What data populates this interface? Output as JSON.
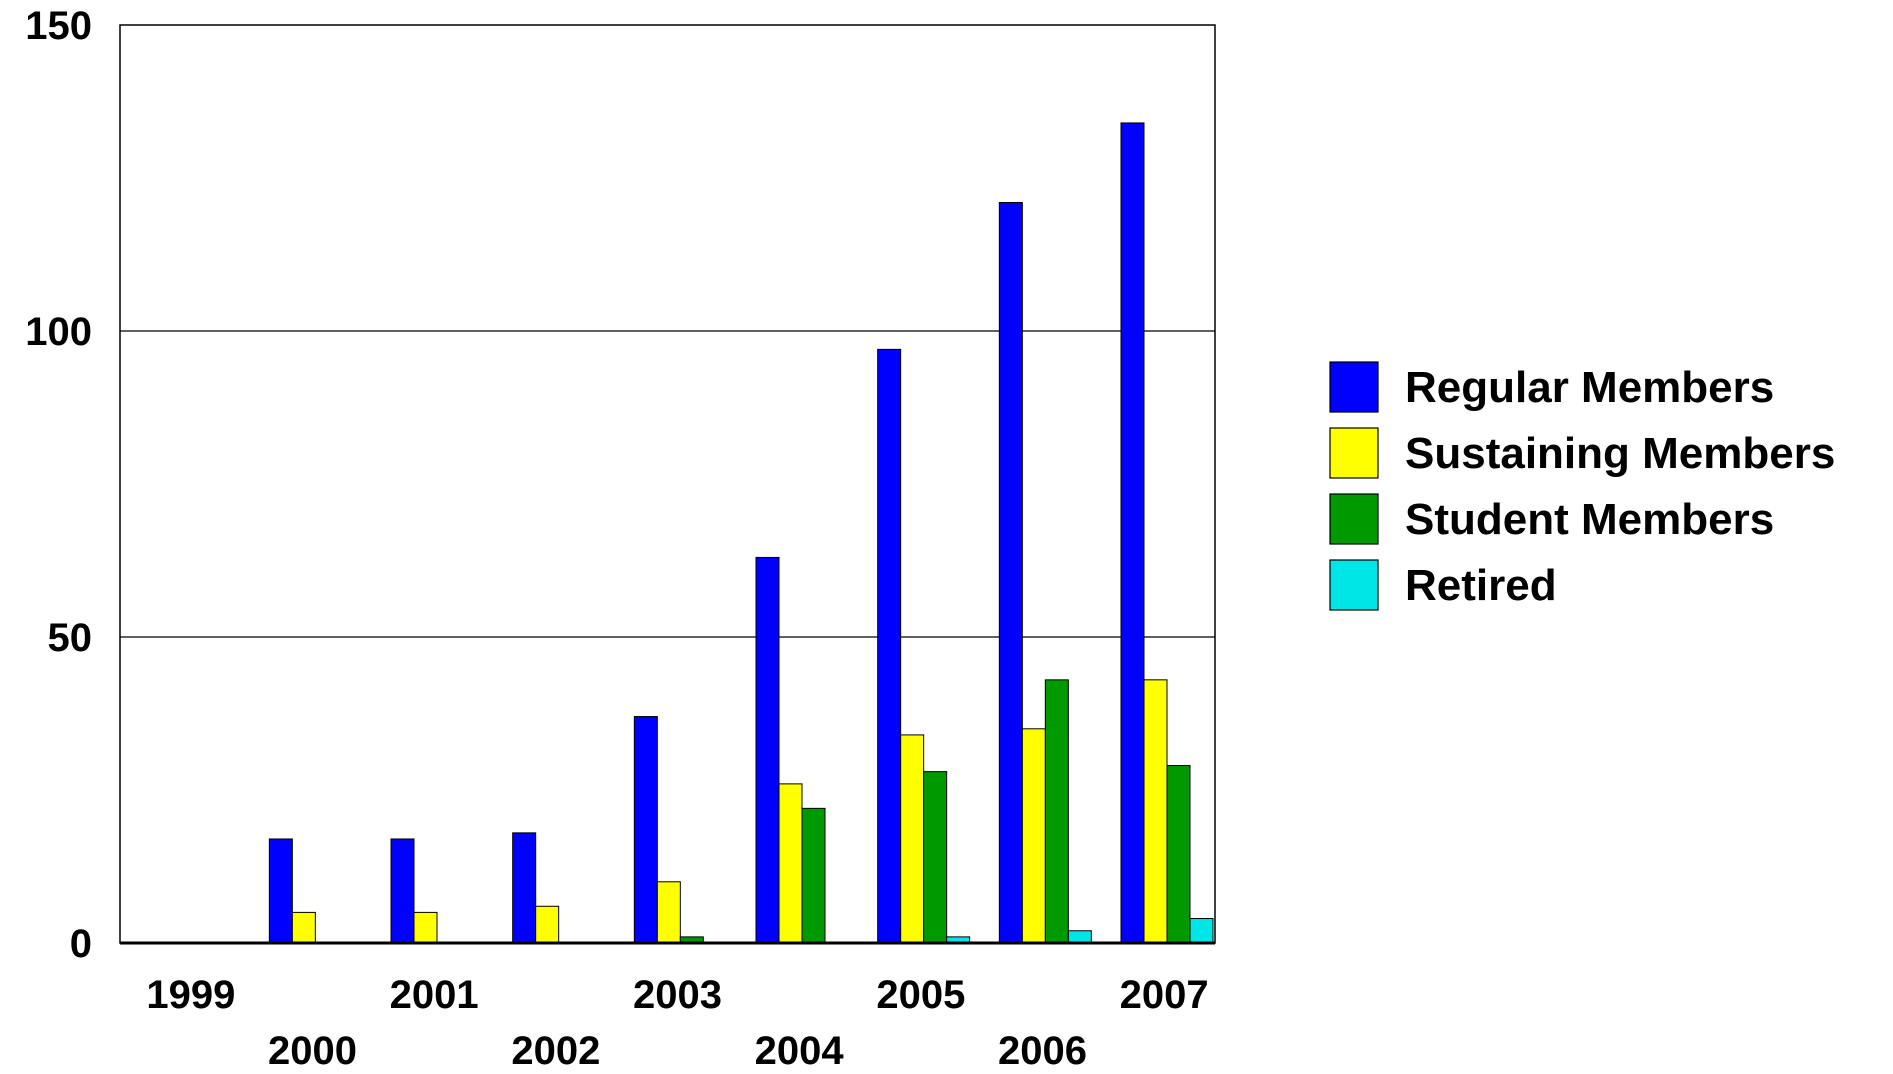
{
  "chart_data": {
    "type": "bar",
    "categories": [
      "1999",
      "2000",
      "2001",
      "2002",
      "2003",
      "2004",
      "2005",
      "2006",
      "2007"
    ],
    "series": [
      {
        "name": "Regular Members",
        "color": "#0000ff",
        "values": [
          0,
          17,
          17,
          18,
          37,
          63,
          97,
          121,
          134
        ]
      },
      {
        "name": "Sustaining Members",
        "color": "#ffff00",
        "values": [
          0,
          5,
          5,
          6,
          10,
          26,
          34,
          35,
          43
        ]
      },
      {
        "name": "Student Members",
        "color": "#009900",
        "values": [
          0,
          0,
          0,
          0,
          1,
          22,
          28,
          43,
          29
        ]
      },
      {
        "name": "Retired",
        "color": "#00e5e5",
        "values": [
          0,
          0,
          0,
          0,
          0,
          0,
          1,
          2,
          4
        ]
      }
    ],
    "ylim": [
      0,
      150
    ],
    "yticks": [
      0,
      50,
      100,
      150
    ],
    "grid": true,
    "legend_position": "right"
  }
}
